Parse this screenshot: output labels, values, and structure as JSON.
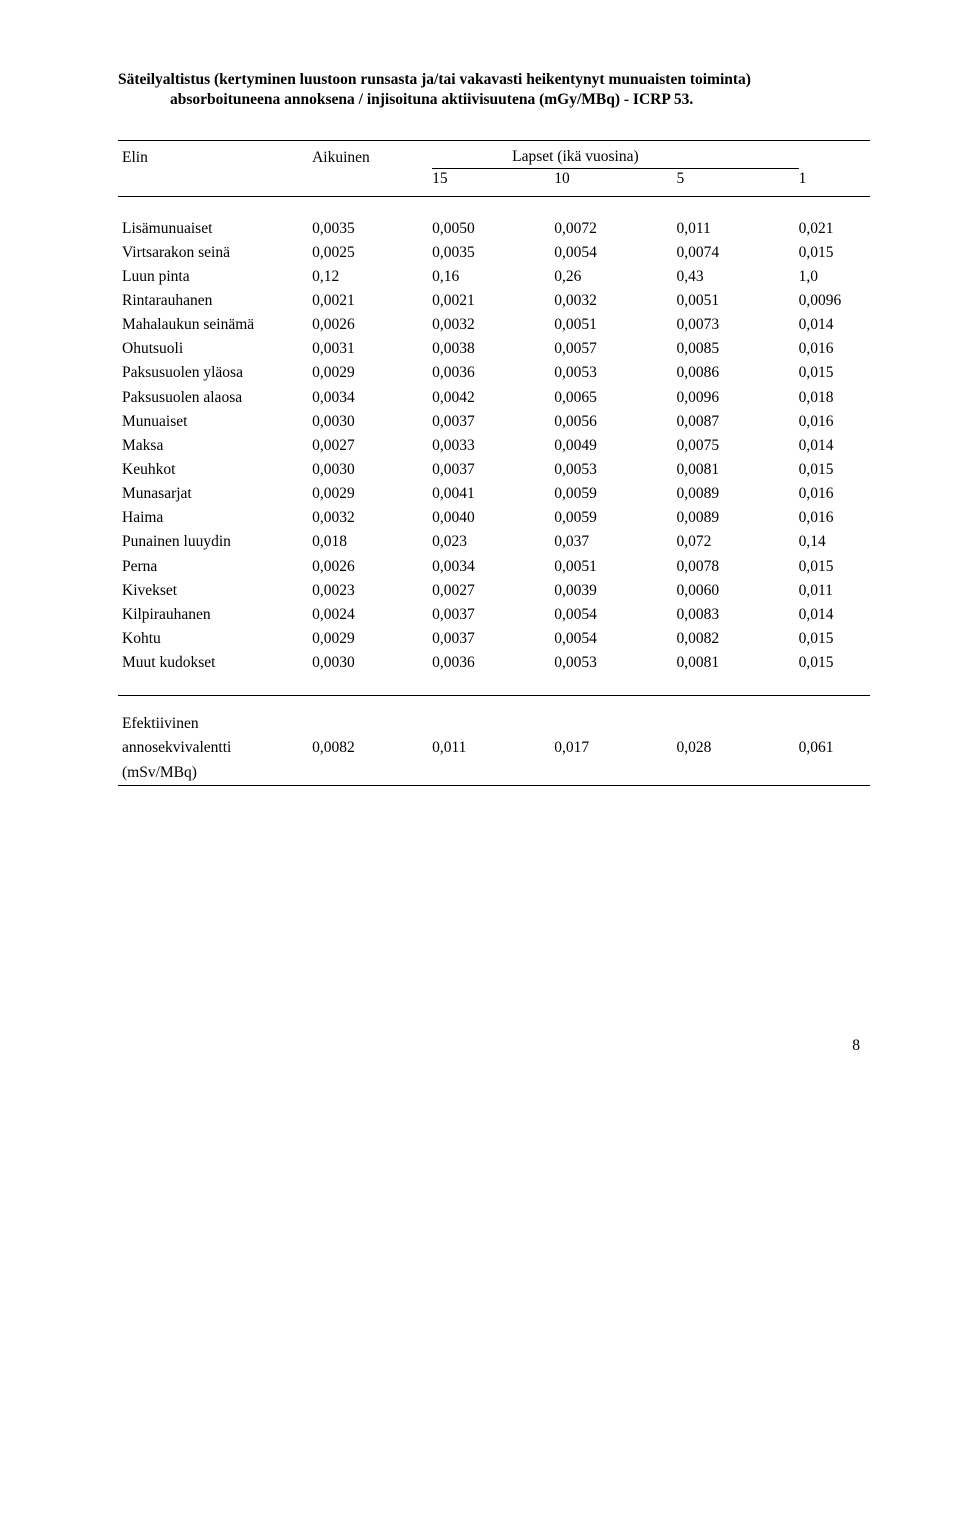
{
  "title": {
    "line1": "Säteilyaltistus (kertyminen luustoon runsasta ja/tai vakavasti heikentynyt munuaisten toiminta)",
    "line2": "absorboituneena annoksena / injisoituna aktiivisuutena (mGy/MBq) - ICRP 53."
  },
  "header": {
    "elin": "Elin",
    "aikuinen": "Aikuinen",
    "lapset": "Lapset (ikä vuosina)",
    "ages": [
      "15",
      "10",
      "5",
      "1"
    ]
  },
  "rows": [
    {
      "label": "Lisämunuaiset",
      "vals": [
        "0,0035",
        "0,0050",
        "0,0072",
        "0,011",
        "0,021"
      ]
    },
    {
      "label": "Virtsarakon seinä",
      "vals": [
        "0,0025",
        "0,0035",
        "0,0054",
        "0,0074",
        "0,015"
      ]
    },
    {
      "label": "Luun pinta",
      "vals": [
        "0,12",
        "0,16",
        "0,26",
        "0,43",
        "1,0"
      ]
    },
    {
      "label": "Rintarauhanen",
      "vals": [
        "0,0021",
        "0,0021",
        "0,0032",
        "0,0051",
        "0,0096"
      ]
    },
    {
      "label": "Mahalaukun seinämä",
      "vals": [
        "0,0026",
        "0,0032",
        "0,0051",
        "0,0073",
        "0,014"
      ]
    },
    {
      "label": "Ohutsuoli",
      "vals": [
        "0,0031",
        "0,0038",
        "0,0057",
        "0,0085",
        "0,016"
      ]
    },
    {
      "label": "Paksusuolen yläosa",
      "vals": [
        "0,0029",
        "0,0036",
        "0,0053",
        "0,0086",
        "0,015"
      ]
    },
    {
      "label": "Paksusuolen alaosa",
      "vals": [
        "0,0034",
        "0,0042",
        "0,0065",
        "0,0096",
        "0,018"
      ]
    },
    {
      "label": "Munuaiset",
      "vals": [
        "0,0030",
        "0,0037",
        "0,0056",
        "0,0087",
        "0,016"
      ]
    },
    {
      "label": "Maksa",
      "vals": [
        "0,0027",
        "0,0033",
        "0,0049",
        "0,0075",
        "0,014"
      ]
    },
    {
      "label": "Keuhkot",
      "vals": [
        "0,0030",
        "0,0037",
        "0,0053",
        "0,0081",
        "0,015"
      ]
    },
    {
      "label": "Munasarjat",
      "vals": [
        "0,0029",
        "0,0041",
        "0,0059",
        "0,0089",
        "0,016"
      ]
    },
    {
      "label": "Haima",
      "vals": [
        "0,0032",
        "0,0040",
        "0,0059",
        "0,0089",
        "0,016"
      ]
    },
    {
      "label": "Punainen luuydin",
      "vals": [
        "0,018",
        "0,023",
        "0,037",
        "0,072",
        "0,14"
      ]
    },
    {
      "label": "Perna",
      "vals": [
        "0,0026",
        "0,0034",
        "0,0051",
        "0,0078",
        "0,015"
      ]
    },
    {
      "label": "Kivekset",
      "vals": [
        "0,0023",
        "0,0027",
        "0,0039",
        "0,0060",
        "0,011"
      ]
    },
    {
      "label": "Kilpirauhanen",
      "vals": [
        "0,0024",
        "0,0037",
        "0,0054",
        "0,0083",
        "0,014"
      ]
    },
    {
      "label": "Kohtu",
      "vals": [
        "0,0029",
        "0,0037",
        "0,0054",
        "0,0082",
        "0,015"
      ]
    },
    {
      "label": "Muut kudokset",
      "vals": [
        "0,0030",
        "0,0036",
        "0,0053",
        "0,0081",
        "0,015"
      ]
    }
  ],
  "footer": {
    "l1": "Efektiivinen",
    "l2": "annosekvivalentti",
    "l3": "(mSv/MBq)",
    "vals": [
      "0,0082",
      "0,011",
      "0,017",
      "0,028",
      "0,061"
    ]
  },
  "page": "8"
}
